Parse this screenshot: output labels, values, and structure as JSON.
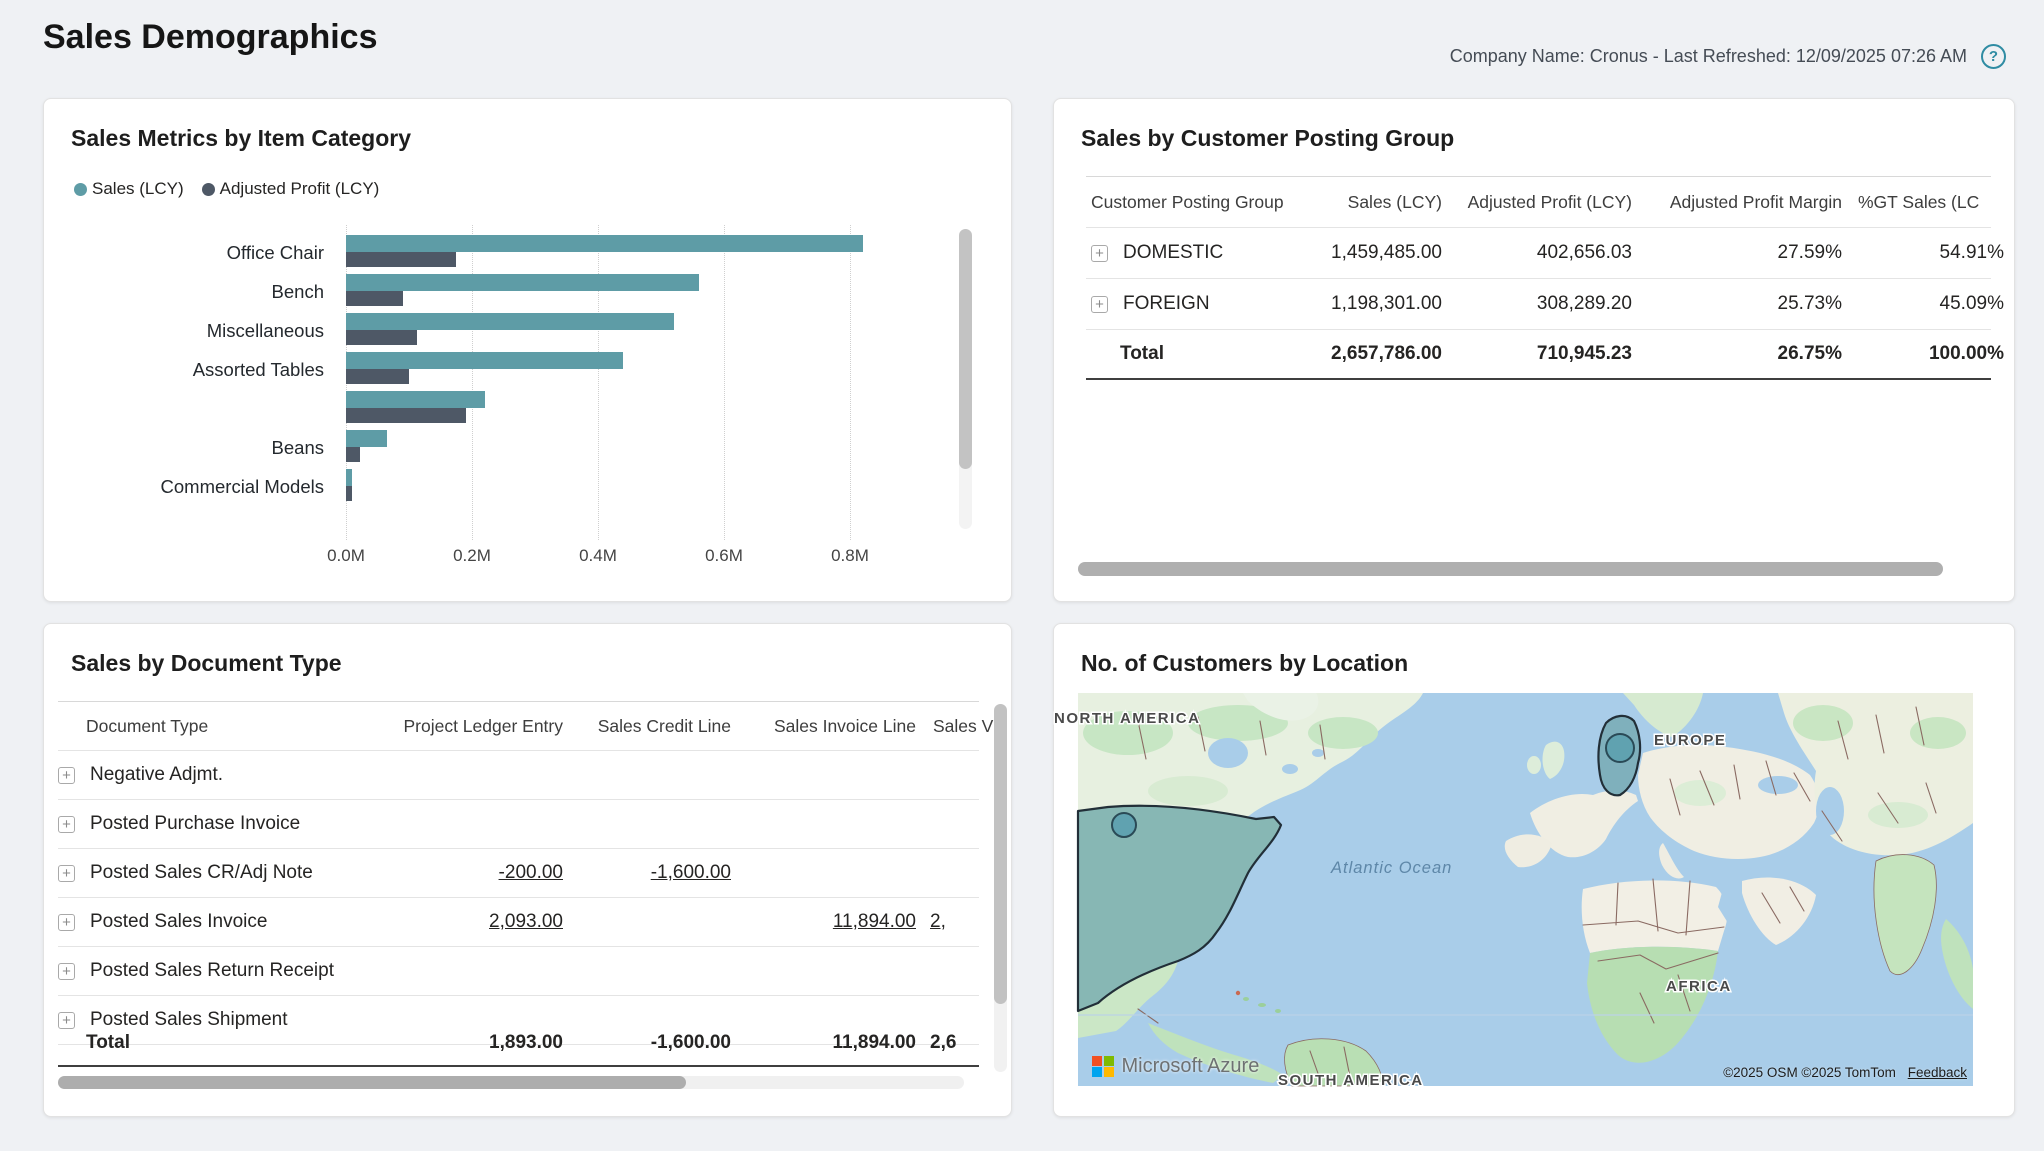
{
  "page": {
    "title": "Sales Demographics",
    "subtitle_right": "Company Name: Cronus - Last Refreshed: 12/09/2025 07:26 AM",
    "icons": {
      "help": "?",
      "expand": "+"
    },
    "colors": {
      "sales": "#5E9CA6",
      "profit": "#4E5866",
      "page_bg": "#EFF1F4",
      "ocean": "#A9CDE9",
      "land": "#F2EFE7",
      "land_green": "#BCE0B8",
      "country_highlight": "#87B7B4",
      "bubble": "#60A2B0"
    }
  },
  "chart_data": {
    "type": "bar",
    "orientation": "horizontal",
    "title": "Sales Metrics by Item Category",
    "categories": [
      "Office Chair",
      "Bench",
      "Miscellaneous",
      "Assorted Tables",
      "",
      "Beans",
      "Commercial Models"
    ],
    "series": [
      {
        "name": "Sales (LCY)",
        "color": "#5E9CA6",
        "values": [
          0.82,
          0.56,
          0.52,
          0.44,
          0.22,
          0.065,
          0.01
        ]
      },
      {
        "name": "Adjusted Profit (LCY)",
        "color": "#4E5866",
        "values": [
          0.175,
          0.09,
          0.113,
          0.1,
          0.19,
          0.022,
          0.01
        ]
      }
    ],
    "x_ticks": [
      "0.0M",
      "0.2M",
      "0.4M",
      "0.6M",
      "0.8M"
    ],
    "xlim": [
      0,
      0.97
    ],
    "units": "M (LCY)",
    "legend_position": "top",
    "grid": "dotted-vertical"
  },
  "posting_group": {
    "title": "Sales by Customer Posting Group",
    "columns": [
      "Customer Posting Group",
      "Sales (LCY)",
      "Adjusted Profit (LCY)",
      "Adjusted Profit Margin",
      "%GT Sales (LC"
    ],
    "rows": [
      {
        "name": "DOMESTIC",
        "cells": [
          "1,459,485.00",
          "402,656.03",
          "27.59%",
          "54.91%"
        ]
      },
      {
        "name": "FOREIGN",
        "cells": [
          "1,198,301.00",
          "308,289.20",
          "25.73%",
          "45.09%"
        ]
      }
    ],
    "total": {
      "name": "Total",
      "cells": [
        "2,657,786.00",
        "710,945.23",
        "26.75%",
        "100.00%"
      ]
    }
  },
  "document_type": {
    "title": "Sales by Document Type",
    "columns": [
      "Document Type",
      "Project Ledger Entry",
      "Sales Credit Line",
      "Sales Invoice Line",
      "Sales V"
    ],
    "rows": [
      {
        "name": "Negative Adjmt.",
        "cells": [
          {
            "t": ""
          },
          {
            "t": ""
          },
          {
            "t": ""
          },
          {
            "t": ""
          }
        ]
      },
      {
        "name": "Posted Purchase Invoice",
        "cells": [
          {
            "t": ""
          },
          {
            "t": ""
          },
          {
            "t": ""
          },
          {
            "t": ""
          }
        ]
      },
      {
        "name": "Posted Sales CR/Adj Note",
        "cells": [
          {
            "t": "-200.00",
            "u": true
          },
          {
            "t": "-1,600.00",
            "u": true
          },
          {
            "t": ""
          },
          {
            "t": ""
          }
        ]
      },
      {
        "name": "Posted Sales Invoice",
        "cells": [
          {
            "t": "2,093.00",
            "u": true
          },
          {
            "t": ""
          },
          {
            "t": "11,894.00",
            "u": true
          },
          {
            "t": "2,",
            "u": true
          }
        ]
      },
      {
        "name": "Posted Sales Return Receipt",
        "cells": [
          {
            "t": ""
          },
          {
            "t": ""
          },
          {
            "t": ""
          },
          {
            "t": ""
          }
        ]
      },
      {
        "name": "Posted Sales Shipment",
        "cells": [
          {
            "t": ""
          },
          {
            "t": ""
          },
          {
            "t": ""
          },
          {
            "t": ""
          }
        ]
      }
    ],
    "total": {
      "name": "Total",
      "cells": [
        "1,893.00",
        "-1,600.00",
        "11,894.00",
        "2,6"
      ]
    }
  },
  "map_panel": {
    "title": "No. of Customers by Location",
    "labels": {
      "north_america": "NORTH AMERICA",
      "europe": "EUROPE",
      "africa": "AFRICA",
      "south_america": "SOUTH AMERICA",
      "ocean": "Atlantic Ocean"
    },
    "markers": [
      {
        "location": "United States"
      },
      {
        "location": "Germany"
      }
    ],
    "attribution": {
      "brand": "Microsoft Azure",
      "copyright": "©2025 OSM  ©2025 TomTom",
      "feedback": "Feedback"
    }
  }
}
